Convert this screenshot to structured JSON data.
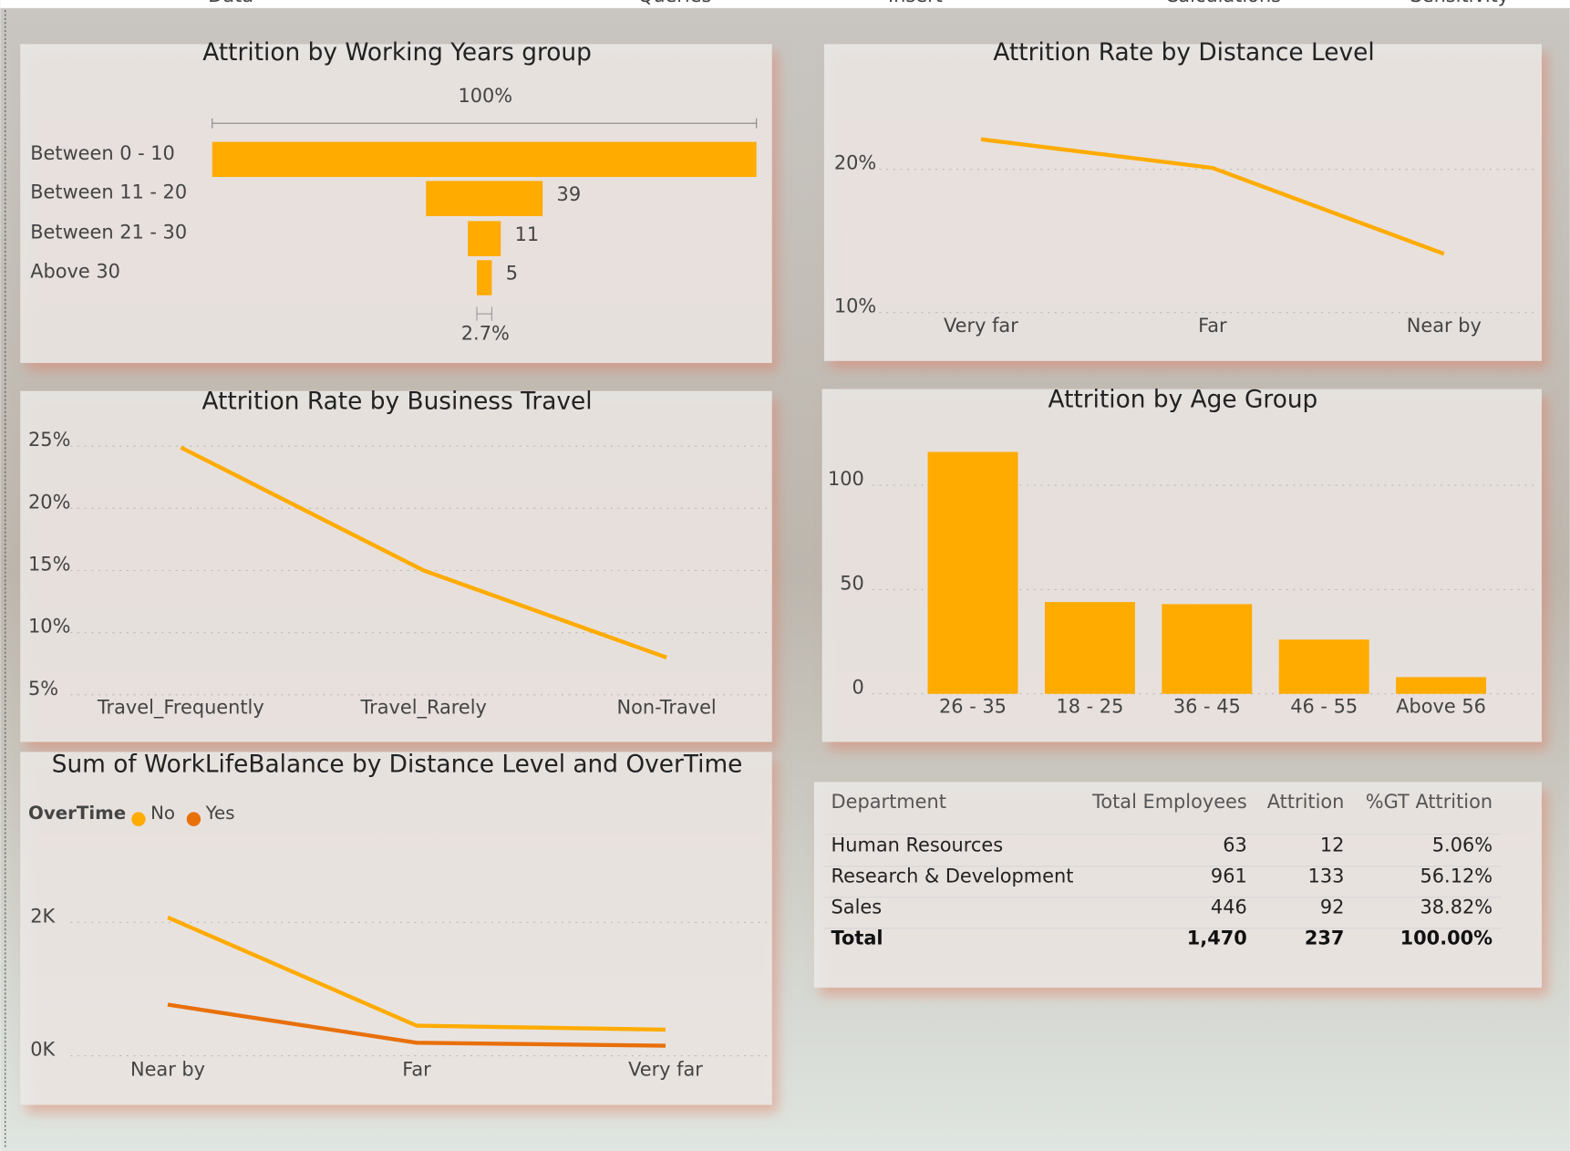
{
  "ribbon": [
    "Data",
    "Queries",
    "Insert",
    "Calculations",
    "Sensitivity"
  ],
  "chart_data": [
    {
      "type": "funnel",
      "title": "Attrition by Working Years group",
      "categories": [
        "Between 0 - 10",
        "Between 11 - 20",
        "Between 21 - 30",
        "Above 30"
      ],
      "values": [
        182,
        39,
        11,
        5
      ],
      "value_labels": [
        null,
        "39",
        "11",
        "5"
      ],
      "color": "#FFAB00",
      "conversion_labels": [
        {
          "value": 100,
          "label": "100%"
        },
        {
          "value": 2.7,
          "label": "2.7%"
        }
      ]
    },
    {
      "type": "line",
      "title": "Attrition Rate by Distance Level",
      "categories": [
        "Very far",
        "Far",
        "Near by"
      ],
      "series": [
        {
          "color": "#FFAB00",
          "values": [
            22.1,
            20.1,
            14.1
          ]
        }
      ],
      "ylim": [
        9,
        25
      ],
      "yticks": [
        {
          "value": 10,
          "label": "10%"
        },
        {
          "value": 20,
          "label": "20%"
        }
      ],
      "grid": true
    },
    {
      "type": "line",
      "title": "Attrition Rate by Business Travel",
      "categories": [
        "Travel_Frequently",
        "Travel_Rarely",
        "Non-Travel"
      ],
      "series": [
        {
          "color": "#FFAB00",
          "values": [
            24.9,
            15.0,
            8.0
          ]
        }
      ],
      "ylim": [
        5,
        26
      ],
      "yticks": [
        {
          "value": 5,
          "label": "5%"
        },
        {
          "value": 10,
          "label": "10%"
        },
        {
          "value": 15,
          "label": "15%"
        },
        {
          "value": 20,
          "label": "20%"
        },
        {
          "value": 25,
          "label": "25%"
        }
      ],
      "grid": true
    },
    {
      "type": "bar",
      "title": "Attrition by Age Group",
      "categories": [
        "26 - 35",
        "18 - 25",
        "36 - 45",
        "46 - 55",
        "Above 56"
      ],
      "series": [
        {
          "color": "#FFAB00",
          "values": [
            116,
            44,
            43,
            26,
            8
          ]
        }
      ],
      "ylim": [
        0,
        125
      ],
      "yticks": [
        0,
        50,
        100
      ],
      "grid": true
    },
    {
      "type": "line",
      "title": "Sum of WorkLifeBalance by Distance Level and OverTime",
      "legend_title": "OverTime",
      "categories": [
        "Near by",
        "Far",
        "Very far"
      ],
      "series": [
        {
          "name": "No",
          "color": "#FFAB00",
          "values": [
            2075,
            451,
            391
          ]
        },
        {
          "name": "Yes",
          "color": "#E8700A",
          "values": [
            767,
            195,
            150
          ]
        }
      ],
      "ylim": [
        0,
        3000
      ],
      "yticks": [
        {
          "value": 0,
          "label": "0K"
        },
        {
          "value": 2000,
          "label": "2K"
        }
      ],
      "grid": true
    }
  ],
  "table": {
    "columns": [
      "Department",
      "Total Employees",
      "Attrition",
      "%GT Attrition"
    ],
    "rows": [
      [
        "Human Resources",
        "63",
        "12",
        "5.06%"
      ],
      [
        "Research & Development",
        "961",
        "133",
        "56.12%"
      ],
      [
        "Sales",
        "446",
        "92",
        "38.82%"
      ]
    ],
    "total": [
      "Total",
      "1,470",
      "237",
      "100.00%"
    ]
  }
}
